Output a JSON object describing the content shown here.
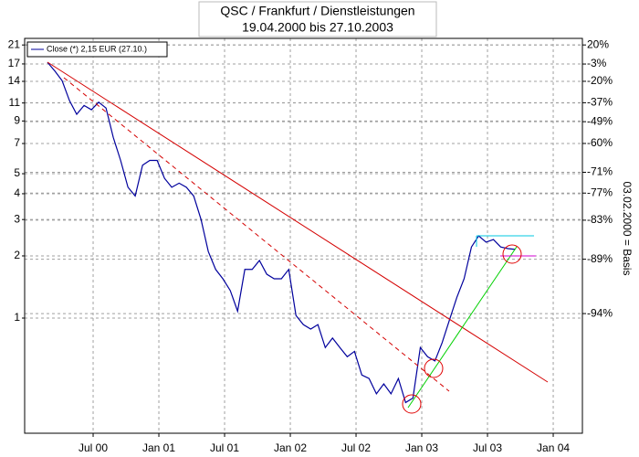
{
  "chart_data": {
    "type": "line",
    "title": "QSC / Frankfurt / Dienstleistungen",
    "subtitle": "19.04.2000 bis 27.10.2003",
    "x": [
      2000.153,
      2000.209,
      2000.264,
      2000.32,
      2000.375,
      2000.431,
      2000.487,
      2000.542,
      2000.598,
      2000.653,
      2000.709,
      2000.765,
      2000.82,
      2000.876,
      2000.931,
      2000.987,
      2001.043,
      2001.098,
      2001.154,
      2001.209,
      2001.265,
      2001.321,
      2001.376,
      2001.432,
      2001.487,
      2001.543,
      2001.599,
      2001.654,
      2001.71,
      2001.765,
      2001.821,
      2001.877,
      2001.932,
      2001.988,
      2002.043,
      2002.099,
      2002.155,
      2002.21,
      2002.266,
      2002.321,
      2002.377,
      2002.433,
      2002.488,
      2002.544,
      2002.599,
      2002.655,
      2002.711,
      2002.766,
      2002.822,
      2002.877,
      2002.933,
      2002.989,
      2003.044,
      2003.1,
      2003.155,
      2003.211,
      2003.267,
      2003.322,
      2003.378,
      2003.433,
      2003.489,
      2003.545,
      2003.6,
      2003.656,
      2003.711
    ],
    "series": [
      {
        "name": "Close (*) 2,15 EUR (27.10.)",
        "color": "#00009c",
        "values": [
          17.3,
          15.7,
          14.1,
          11.3,
          9.7,
          10.7,
          10.2,
          11.1,
          10.4,
          7.5,
          5.8,
          4.3,
          3.9,
          5.5,
          5.8,
          5.8,
          4.75,
          4.3,
          4.5,
          4.3,
          3.9,
          3.0,
          2.1,
          1.72,
          1.55,
          1.36,
          1.08,
          1.72,
          1.72,
          1.9,
          1.63,
          1.55,
          1.55,
          1.72,
          1.03,
          0.93,
          0.885,
          0.93,
          0.72,
          0.8,
          0.72,
          0.65,
          0.69,
          0.53,
          0.51,
          0.43,
          0.48,
          0.43,
          0.51,
          0.39,
          0.41,
          0.72,
          0.65,
          0.62,
          0.76,
          0.98,
          1.26,
          1.55,
          2.21,
          2.5,
          2.33,
          2.4,
          2.21,
          2.17,
          2.15
        ]
      }
    ],
    "xlim": [
      1999.979,
      2004.222
    ],
    "xticks": [
      {
        "value": 2000.5,
        "label": "Jul 00"
      },
      {
        "value": 2001.0,
        "label": "Jan 01"
      },
      {
        "value": 2001.5,
        "label": "Jul 01"
      },
      {
        "value": 2002.0,
        "label": "Jan 02"
      },
      {
        "value": 2002.5,
        "label": "Jul 02"
      },
      {
        "value": 2003.0,
        "label": "Jan 03"
      },
      {
        "value": 2003.5,
        "label": "Jul 03"
      },
      {
        "value": 2004.0,
        "label": "Jan 04"
      }
    ],
    "ylim": [
      0.277,
      22.6
    ],
    "yticks": [
      21,
      17,
      14,
      11,
      9,
      7,
      5,
      4,
      3,
      2,
      1
    ],
    "log_scale": true,
    "y2lim": [
      -98.42,
      29.1
    ],
    "y2ticks": [
      {
        "value": 20,
        "label": "20%"
      },
      {
        "value": -3,
        "label": "-3%"
      },
      {
        "value": -20,
        "label": "-20%"
      },
      {
        "value": -37,
        "label": "-37%"
      },
      {
        "value": -49,
        "label": "-49%"
      },
      {
        "value": -60,
        "label": "-60%"
      },
      {
        "value": -71,
        "label": "-71%"
      },
      {
        "value": -77,
        "label": "-77%"
      },
      {
        "value": -83,
        "label": "-83%"
      },
      {
        "value": -89,
        "label": "-89%"
      },
      {
        "value": -94,
        "label": "-94%"
      }
    ],
    "y2label": "03.02.2000 = Basis",
    "grid": true,
    "legend": "upper left"
  }
}
